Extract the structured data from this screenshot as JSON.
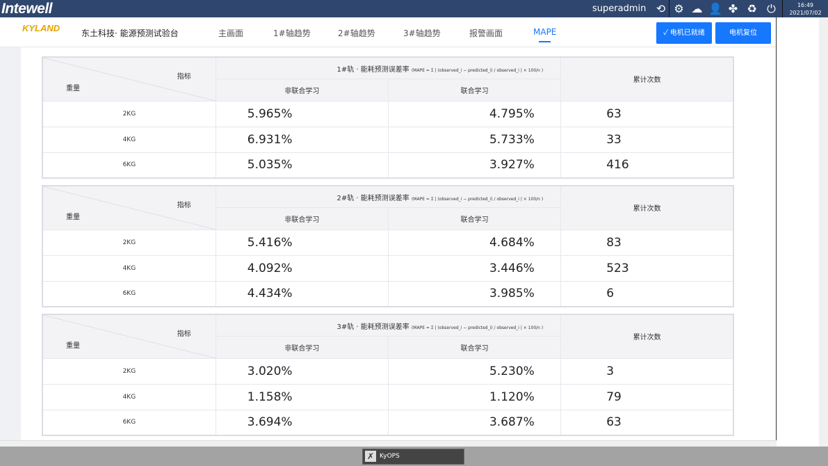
{
  "topbar": {
    "brand": "Intewell",
    "user": "superadmin",
    "time": "16:49",
    "date": "2021/07/02",
    "icons": [
      "logout-icon",
      "gear-icon",
      "network-icon",
      "user-icon",
      "fan-icon",
      "recycle-icon",
      "power-icon"
    ]
  },
  "nav": {
    "logo": "KYLAND",
    "site_title": "东土科技· 能源预测试验台",
    "items": [
      "主画面",
      "1#轴趋势",
      "2#轴趋势",
      "3#轴趋势",
      "报警画面",
      "MAPE"
    ],
    "active": "MAPE",
    "btn_ready": "电机已就绪",
    "btn_reset": "电机复位"
  },
  "accent": "#1677ff",
  "tables": [
    {
      "title": "1#轨 · 能耗预测误差率",
      "formula": "(MAPE = Σ | (observed_i − predicted_i) / observed_i | × 100/n )",
      "corner_top": "指标",
      "corner_bottom": "重量",
      "col_a": "非联合学习",
      "col_b": "联合学习",
      "col_count": "累计次数",
      "rows": [
        {
          "w": "2KG",
          "a": "5.965%",
          "b": "4.795%",
          "c": "63"
        },
        {
          "w": "4KG",
          "a": "6.931%",
          "b": "5.733%",
          "c": "33"
        },
        {
          "w": "6KG",
          "a": "5.035%",
          "b": "3.927%",
          "c": "416"
        }
      ]
    },
    {
      "title": "2#轨 · 能耗预测误差率",
      "formula": "(MAPE = Σ | (observed_i − predicted_i) / observed_i | × 100/n )",
      "corner_top": "指标",
      "corner_bottom": "重量",
      "col_a": "非联合学习",
      "col_b": "联合学习",
      "col_count": "累计次数",
      "rows": [
        {
          "w": "2KG",
          "a": "5.416%",
          "b": "4.684%",
          "c": "83"
        },
        {
          "w": "4KG",
          "a": "4.092%",
          "b": "3.446%",
          "c": "523"
        },
        {
          "w": "6KG",
          "a": "4.434%",
          "b": "3.985%",
          "c": "6"
        }
      ]
    },
    {
      "title": "3#轨 · 能耗预测误差率",
      "formula": "(MAPE = Σ | (observed_i − predicted_i) / observed_i | × 100/n )",
      "corner_top": "指标",
      "corner_bottom": "重量",
      "col_a": "非联合学习",
      "col_b": "联合学习",
      "col_count": "累计次数",
      "rows": [
        {
          "w": "2KG",
          "a": "3.020%",
          "b": "5.230%",
          "c": "3"
        },
        {
          "w": "4KG",
          "a": "1.158%",
          "b": "1.120%",
          "c": "79"
        },
        {
          "w": "6KG",
          "a": "3.694%",
          "b": "3.687%",
          "c": "63"
        }
      ]
    }
  ],
  "taskbar": {
    "app": "KyOPS"
  }
}
